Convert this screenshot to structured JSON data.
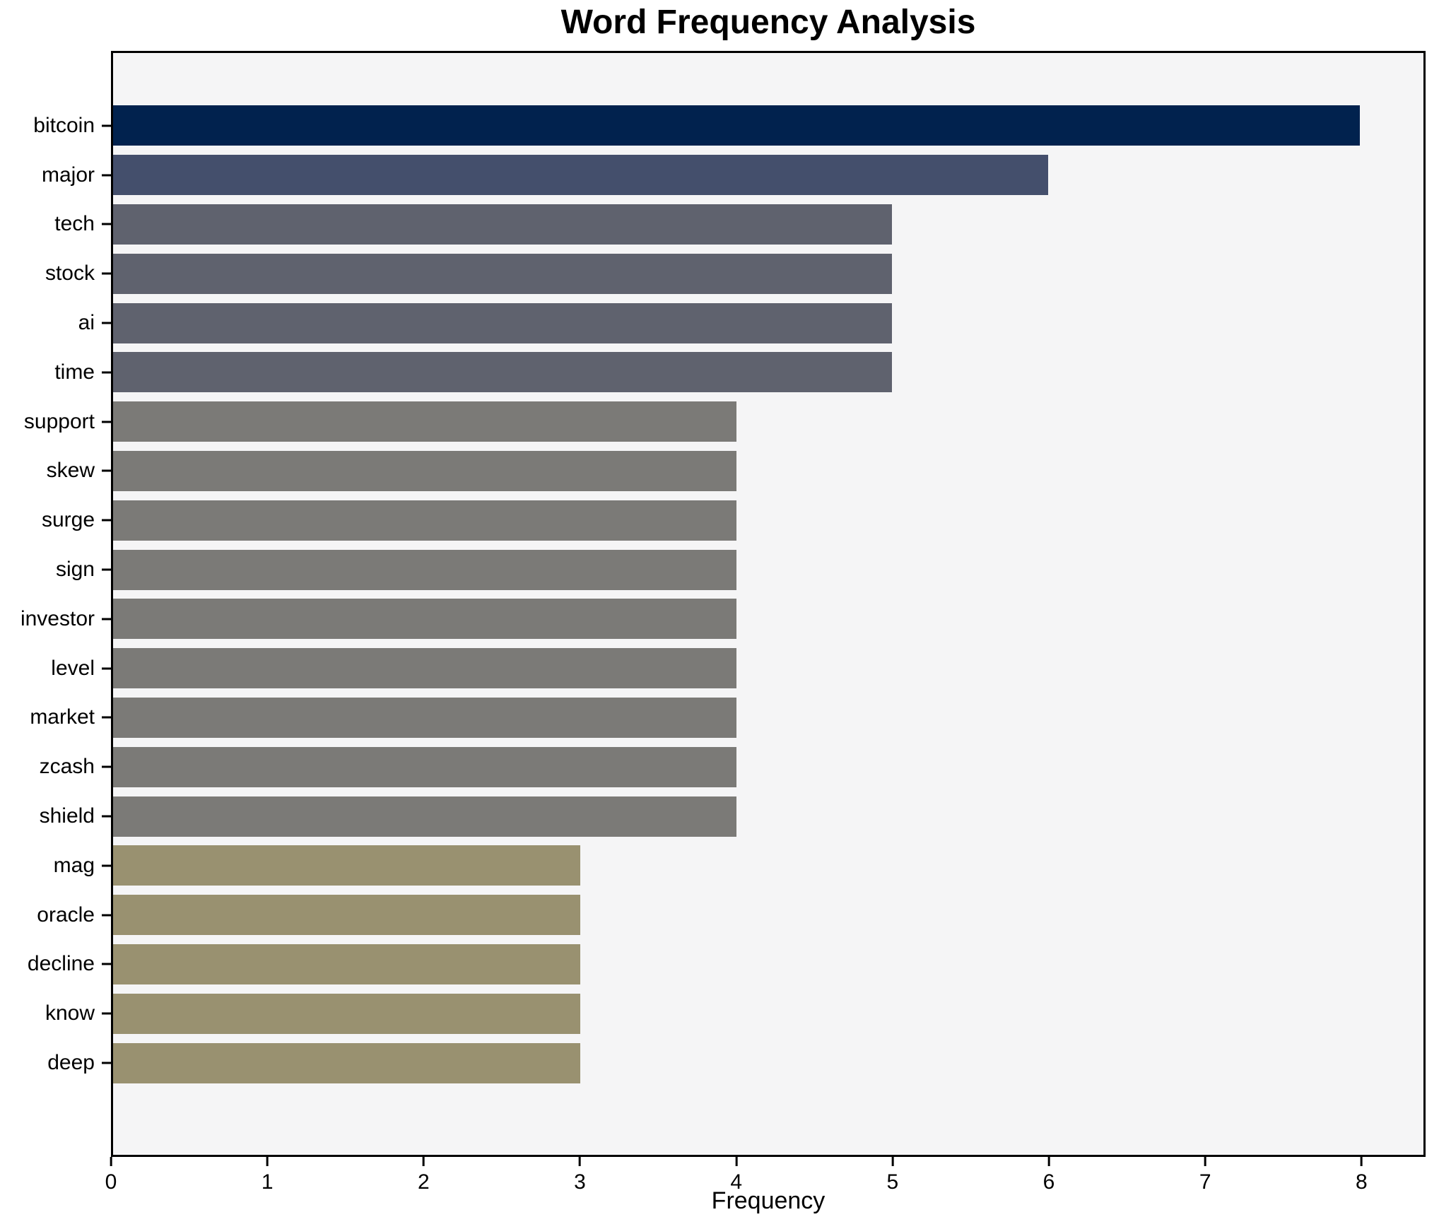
{
  "chart_data": {
    "type": "bar",
    "orientation": "horizontal",
    "title": "Word Frequency Analysis",
    "xlabel": "Frequency",
    "ylabel": "",
    "categories": [
      "bitcoin",
      "major",
      "tech",
      "stock",
      "ai",
      "time",
      "support",
      "skew",
      "surge",
      "sign",
      "investor",
      "level",
      "market",
      "zcash",
      "shield",
      "mag",
      "oracle",
      "decline",
      "know",
      "deep"
    ],
    "values": [
      8,
      6,
      5,
      5,
      5,
      5,
      4,
      4,
      4,
      4,
      4,
      4,
      4,
      4,
      4,
      3,
      3,
      3,
      3,
      3
    ],
    "bar_colors": [
      "#01224e",
      "#444f6c",
      "#5f626e",
      "#5f626e",
      "#5f626e",
      "#5f626e",
      "#7b7a77",
      "#7b7a77",
      "#7b7a77",
      "#7b7a77",
      "#7b7a77",
      "#7b7a77",
      "#7b7a77",
      "#7b7a77",
      "#7b7a77",
      "#999170",
      "#999170",
      "#999170",
      "#999170",
      "#999170"
    ],
    "xlim": [
      0,
      8.41
    ],
    "xticks": [
      0,
      1,
      2,
      3,
      4,
      5,
      6,
      7,
      8
    ],
    "grid": false,
    "legend": null,
    "plot_background": "#f5f5f6",
    "figure_background": "#ffffff",
    "spine_color": "#000000"
  }
}
